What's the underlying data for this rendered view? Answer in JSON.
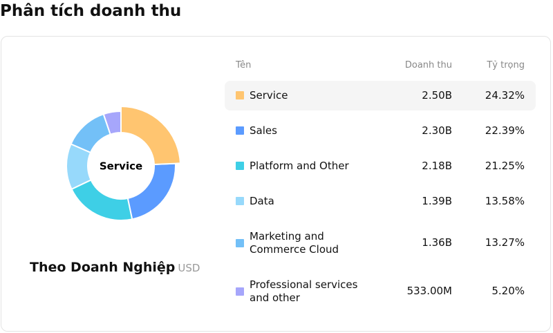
{
  "header": {
    "title": "Phân tích doanh thu"
  },
  "chart_data": {
    "type": "pie",
    "donut": true,
    "center_label": "Service",
    "title": "Theo Doanh Nghiệp",
    "unit": "USD",
    "columns": [
      "Tên",
      "Doanh thu",
      "Tỷ trọng"
    ],
    "categories": [
      "Service",
      "Sales",
      "Platform and Other",
      "Data",
      "Marketing and Commerce Cloud",
      "Professional services and other"
    ],
    "colors": [
      "#ffc570",
      "#5b9bff",
      "#3ecfe6",
      "#97d9fb",
      "#73c0f7",
      "#a6a6fb"
    ],
    "revenue": [
      2500000000,
      2300000000,
      2180000000,
      1390000000,
      1360000000,
      533000000
    ],
    "revenue_labels": [
      "2.50B",
      "2.30B",
      "2.18B",
      "1.39B",
      "1.36B",
      "533.00M"
    ],
    "values": [
      24.32,
      22.39,
      21.25,
      13.58,
      13.27,
      5.2
    ],
    "value_labels": [
      "24.32%",
      "22.39%",
      "21.25%",
      "13.58%",
      "13.27%",
      "5.20%"
    ],
    "highlight": 0
  }
}
